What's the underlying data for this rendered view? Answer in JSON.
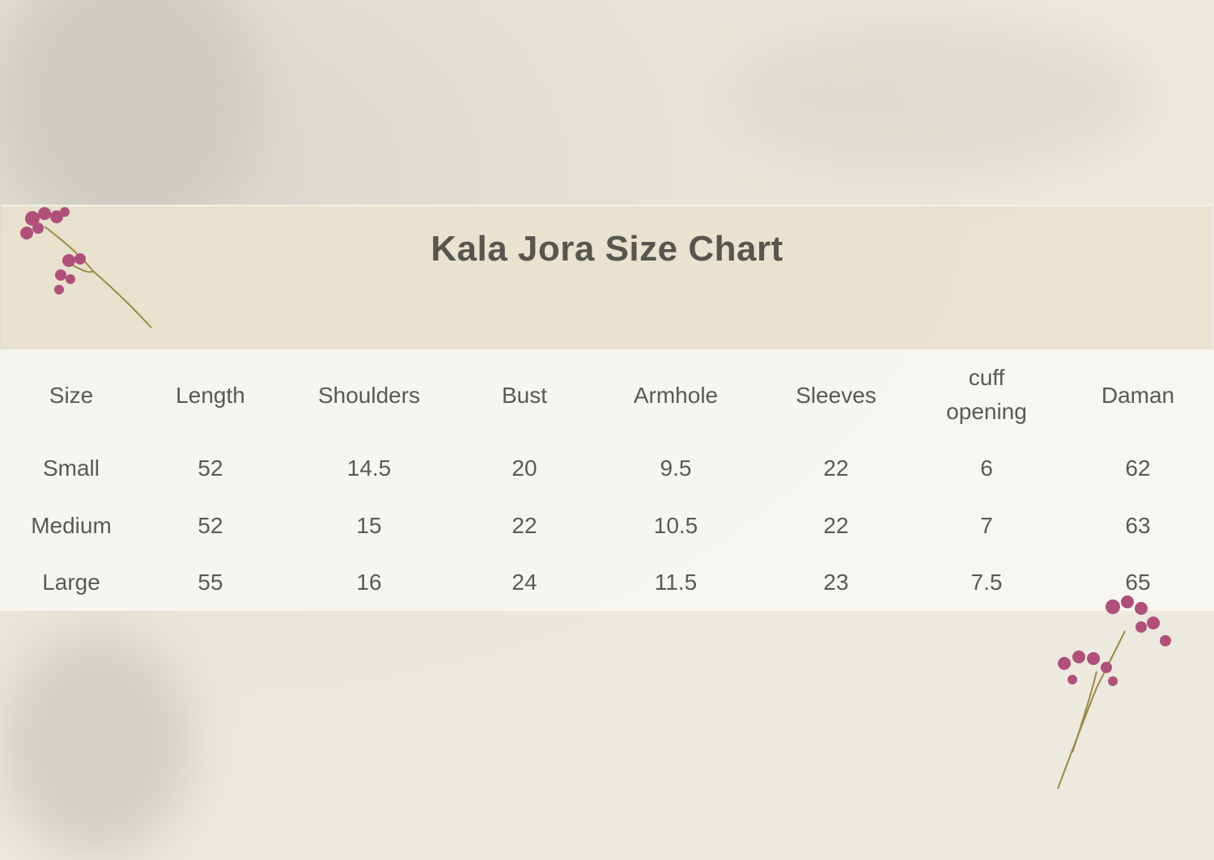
{
  "title": "Kala Jora Size Chart",
  "chart_data": {
    "type": "table",
    "title": "Kala Jora Size Chart",
    "columns": [
      "Size",
      "Length",
      "Shoulders",
      "Bust",
      "Armhole",
      "Sleeves",
      "cuff opening",
      "Daman"
    ],
    "rows": [
      [
        "Small",
        "52",
        "14.5",
        "20",
        "9.5",
        "22",
        "6",
        "62"
      ],
      [
        "Medium",
        "52",
        "15",
        "22",
        "10.5",
        "22",
        "7",
        "63"
      ],
      [
        "Large",
        "55",
        "16",
        "24",
        "11.5",
        "23",
        "7.5",
        "65"
      ]
    ]
  },
  "colors": {
    "background": "#ebe8dd",
    "header_band": "#e8e2ce",
    "text": "#56564f",
    "flower": "#b0507a"
  }
}
